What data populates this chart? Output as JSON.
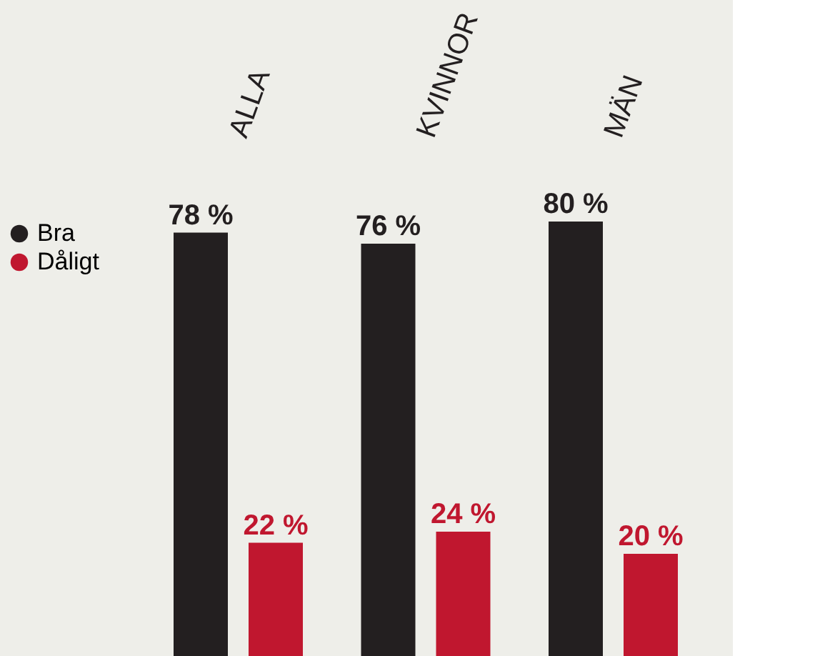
{
  "chart_data": {
    "type": "bar",
    "categories": [
      "ALLA",
      "KVINNOR",
      "MÄN"
    ],
    "series": [
      {
        "name": "Bra",
        "color": "#231f20",
        "values": [
          78,
          76,
          80
        ],
        "value_labels": [
          "78 %",
          "76 %",
          "80 %"
        ]
      },
      {
        "name": "Dåligt",
        "color": "#c0172f",
        "values": [
          22,
          24,
          20
        ],
        "value_labels": [
          "22 %",
          "24 %",
          "20 %"
        ]
      }
    ],
    "legend": "left",
    "grid": false,
    "tick_labels": "x"
  }
}
